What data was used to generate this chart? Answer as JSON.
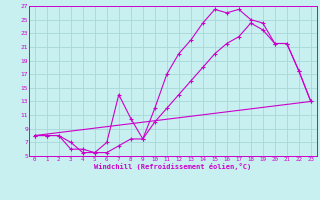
{
  "xlabel": "Windchill (Refroidissement éolien,°C)",
  "bg_color": "#c8f0f0",
  "grid_color": "#a8d8d8",
  "line_color": "#cc00cc",
  "xlim": [
    -0.5,
    23.5
  ],
  "ylim": [
    5,
    27
  ],
  "xticks": [
    0,
    1,
    2,
    3,
    4,
    5,
    6,
    7,
    8,
    9,
    10,
    11,
    12,
    13,
    14,
    15,
    16,
    17,
    18,
    19,
    20,
    21,
    22,
    23
  ],
  "yticks": [
    5,
    7,
    9,
    11,
    13,
    15,
    17,
    19,
    21,
    23,
    25,
    27
  ],
  "line1_x": [
    0,
    1,
    2,
    3,
    4,
    5,
    6,
    7,
    8,
    9,
    10,
    11,
    12,
    13,
    14,
    15,
    16,
    17,
    18,
    19,
    20,
    21,
    22,
    23
  ],
  "line1_y": [
    8,
    8,
    8,
    6,
    6,
    5.5,
    7,
    14,
    10.5,
    7.5,
    12,
    17,
    20,
    22,
    24.5,
    26.5,
    26,
    26.5,
    25,
    24.5,
    21.5,
    21.5,
    17.5,
    13
  ],
  "line2_x": [
    0,
    1,
    2,
    3,
    4,
    5,
    6,
    7,
    8,
    9,
    10,
    11,
    12,
    13,
    14,
    15,
    16,
    17,
    18,
    19,
    20,
    21,
    22,
    23
  ],
  "line2_y": [
    8,
    8,
    8,
    7,
    5.5,
    5.5,
    5.5,
    6.5,
    7.5,
    7.5,
    10,
    12,
    14,
    16,
    18,
    20,
    21.5,
    22.5,
    24.5,
    23.5,
    21.5,
    21.5,
    17.5,
    13
  ],
  "line3_x": [
    0,
    23
  ],
  "line3_y": [
    8,
    13
  ]
}
